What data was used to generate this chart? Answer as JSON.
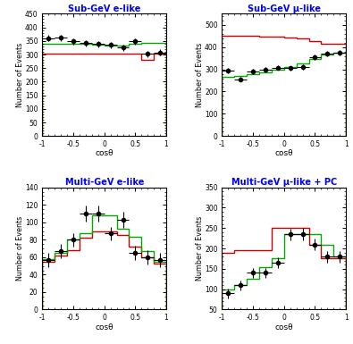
{
  "titles": [
    "Sub-GeV e-like",
    "Sub-GeV μ-like",
    "Multi-GeV e-like",
    "Multi-GeV μ-like + PC"
  ],
  "xlabel": "cosθ",
  "ylabel": "Number of Events",
  "title_color": "blue",
  "bin_edges": [
    -1.0,
    -0.8,
    -0.6,
    -0.4,
    -0.2,
    0.0,
    0.2,
    0.4,
    0.6,
    0.8,
    1.0
  ],
  "sub_e_red": [
    303,
    303,
    303,
    303,
    303,
    303,
    303,
    303,
    280,
    303
  ],
  "sub_e_green": [
    338,
    340,
    340,
    338,
    335,
    332,
    332,
    338,
    342,
    342
  ],
  "sub_e_data": [
    360,
    362,
    348,
    342,
    338,
    335,
    325,
    348,
    302,
    308
  ],
  "sub_e_xerr": [
    0.1,
    0.1,
    0.1,
    0.1,
    0.1,
    0.1,
    0.1,
    0.1,
    0.1,
    0.1
  ],
  "sub_e_err": [
    12,
    12,
    12,
    12,
    11,
    11,
    11,
    11,
    11,
    11
  ],
  "sub_e_ylim": [
    0,
    450
  ],
  "sub_e_yticks": [
    0,
    50,
    100,
    150,
    200,
    250,
    300,
    350,
    400,
    450
  ],
  "sub_mu_red": [
    450,
    450,
    450,
    448,
    448,
    445,
    440,
    428,
    415,
    415
  ],
  "sub_mu_green": [
    265,
    270,
    278,
    285,
    298,
    312,
    325,
    348,
    368,
    375
  ],
  "sub_mu_data": [
    293,
    255,
    292,
    300,
    308,
    305,
    310,
    355,
    370,
    375
  ],
  "sub_mu_xerr": [
    0.1,
    0.1,
    0.1,
    0.1,
    0.1,
    0.1,
    0.1,
    0.1,
    0.1,
    0.1
  ],
  "sub_mu_err": [
    12,
    10,
    12,
    12,
    11,
    11,
    12,
    12,
    12,
    12
  ],
  "sub_mu_ylim": [
    0,
    550
  ],
  "sub_mu_yticks": [
    0,
    100,
    200,
    300,
    400,
    500
  ],
  "multi_e_red": [
    55,
    62,
    68,
    82,
    90,
    90,
    85,
    72,
    60,
    53
  ],
  "multi_e_green": [
    58,
    65,
    80,
    88,
    108,
    108,
    93,
    83,
    67,
    55
  ],
  "multi_e_data": [
    57,
    67,
    80,
    110,
    110,
    87,
    103,
    65,
    60,
    57
  ],
  "multi_e_xerr": [
    0.1,
    0.1,
    0.1,
    0.1,
    0.1,
    0.1,
    0.1,
    0.1,
    0.1,
    0.1
  ],
  "multi_e_err": [
    8,
    8,
    8,
    9,
    9,
    8,
    9,
    8,
    8,
    8
  ],
  "multi_e_ylim": [
    0,
    140
  ],
  "multi_e_yticks": [
    0,
    20,
    40,
    60,
    80,
    100,
    120,
    140
  ],
  "multi_mu_red": [
    190,
    195,
    195,
    195,
    250,
    250,
    250,
    210,
    175,
    175
  ],
  "multi_mu_green": [
    100,
    110,
    125,
    155,
    175,
    235,
    235,
    235,
    210,
    180
  ],
  "multi_mu_data": [
    90,
    110,
    140,
    140,
    165,
    235,
    235,
    210,
    180,
    180
  ],
  "multi_mu_xerr": [
    0.1,
    0.1,
    0.1,
    0.1,
    0.1,
    0.1,
    0.1,
    0.1,
    0.1,
    0.1
  ],
  "multi_mu_err": [
    12,
    12,
    12,
    12,
    13,
    14,
    15,
    15,
    14,
    14
  ],
  "multi_mu_ylim": [
    50,
    350
  ],
  "multi_mu_yticks": [
    50,
    100,
    150,
    200,
    250,
    300,
    350
  ],
  "red_color": "#cc0000",
  "green_color": "#00aa00",
  "data_color": "black",
  "bg_color": "white",
  "plot_bg": "white"
}
